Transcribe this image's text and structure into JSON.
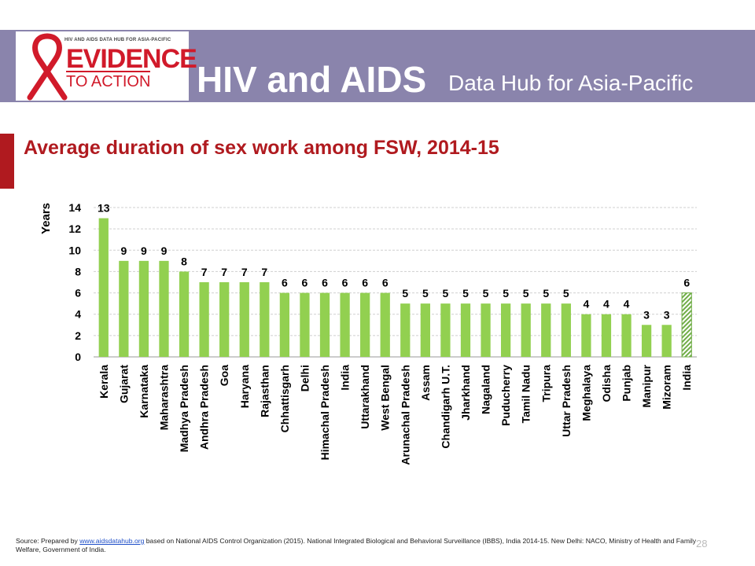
{
  "header": {
    "logo_small_text": "HIV AND AIDS DATA HUB FOR ASIA-PACIFIC",
    "logo_line1": "EVIDENCE",
    "logo_line2": "TO ACTION",
    "title": "HIV and AIDS",
    "subtitle": "Data Hub for Asia-Pacific",
    "bar_color": "#8a84ac",
    "brand_red": "#d11a2a"
  },
  "slide": {
    "title": "Average duration of sex work among FSW, 2014-15",
    "title_color": "#b01a1f",
    "page_number": "28"
  },
  "source": {
    "prefix": "Source: Prepared by ",
    "link": "www.aidsdatahub.org",
    "suffix": " based on  National AIDS Control Organization (2015). National Integrated Biological and Behavioral Surveillance (IBBS), India 2014-15. New Delhi: NACO, Ministry of Health and Family Welfare, Government of India."
  },
  "chart_data": {
    "type": "bar",
    "title": "Average duration of sex work among FSW, 2014-15",
    "ylabel": "Years",
    "xlabel": "",
    "ylim": [
      0,
      14
    ],
    "yticks": [
      0,
      2,
      4,
      6,
      8,
      10,
      12,
      14
    ],
    "grid": true,
    "bar_color": "#92d050",
    "highlight_color": "#70ad47",
    "categories": [
      "Kerala",
      "Gujarat",
      "Karnataka",
      "Maharashtra",
      "Madhya Pradesh",
      "Andhra Pradesh",
      "Goa",
      "Haryana",
      "Rajasthan",
      "Chhattisgarh",
      "Delhi",
      "Himachal Pradesh",
      "India",
      "Uttarakhand",
      "West Bengal",
      "Arunachal Pradesh",
      "Assam",
      "Chandigarh U.T.",
      "Jharkhand",
      "Nagaland",
      "Puducherry",
      "Tamil Nadu",
      "Tripura",
      "Uttar Pradesh",
      "Meghalaya",
      "Odisha",
      "Punjab",
      "Manipur",
      "Mizoram",
      "India"
    ],
    "values": [
      13,
      9,
      9,
      9,
      8,
      7,
      7,
      7,
      7,
      6,
      6,
      6,
      6,
      6,
      6,
      5,
      5,
      5,
      5,
      5,
      5,
      5,
      5,
      5,
      4,
      4,
      4,
      3,
      3,
      6
    ],
    "data_labels": [
      "13",
      "9",
      "9",
      "9",
      "8",
      "7",
      "7",
      "7",
      "7",
      "6",
      "6",
      "6",
      "6",
      "6",
      "6",
      "5",
      "5",
      "5",
      "5",
      "5",
      "5",
      "5",
      "5",
      "5",
      "4",
      "4",
      "4",
      "3",
      "3",
      "6"
    ],
    "highlight": [
      false,
      false,
      false,
      false,
      false,
      false,
      false,
      false,
      false,
      false,
      false,
      false,
      false,
      false,
      false,
      false,
      false,
      false,
      false,
      false,
      false,
      false,
      false,
      false,
      false,
      false,
      false,
      false,
      false,
      true
    ]
  }
}
